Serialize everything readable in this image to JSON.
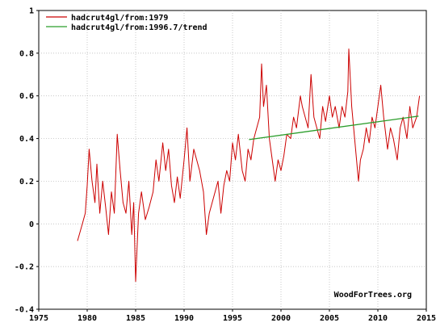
{
  "chart_data": {
    "type": "line",
    "title": "",
    "xlabel": "",
    "ylabel": "",
    "xlim": [
      1975,
      2015
    ],
    "ylim": [
      -0.4,
      1.0
    ],
    "x_ticks": [
      1975,
      1980,
      1985,
      1990,
      1995,
      2000,
      2005,
      2010,
      2015
    ],
    "y_ticks": [
      -0.4,
      -0.2,
      0,
      0.2,
      0.4,
      0.6,
      0.8,
      1
    ],
    "y_tick_labels": [
      "-0.4",
      "-0.2",
      "0",
      "0.2",
      "0.4",
      "0.6",
      "0.8",
      "1"
    ],
    "grid": true,
    "legend_position": "top-left",
    "credit": "WoodForTrees.org",
    "series": [
      {
        "name": "hadcrut4gl/from:1979",
        "color": "#cc0000",
        "x": [
          1979.0,
          1979.5,
          1979.8,
          1980.0,
          1980.2,
          1980.5,
          1980.8,
          1981.0,
          1981.3,
          1981.6,
          1981.9,
          1982.2,
          1982.5,
          1982.8,
          1983.1,
          1983.4,
          1983.7,
          1984.0,
          1984.3,
          1984.6,
          1984.8,
          1985.0,
          1985.3,
          1985.6,
          1986.0,
          1986.4,
          1986.8,
          1987.1,
          1987.4,
          1987.8,
          1988.1,
          1988.4,
          1988.7,
          1989.0,
          1989.3,
          1989.6,
          1990.0,
          1990.3,
          1990.6,
          1991.0,
          1991.3,
          1991.6,
          1992.0,
          1992.3,
          1992.6,
          1992.9,
          1993.2,
          1993.5,
          1993.8,
          1994.1,
          1994.4,
          1994.7,
          1995.0,
          1995.3,
          1995.6,
          1996.0,
          1996.3,
          1996.6,
          1996.9,
          1997.2,
          1997.5,
          1997.8,
          1998.0,
          1998.2,
          1998.5,
          1998.8,
          1999.1,
          1999.4,
          1999.7,
          2000.0,
          2000.3,
          2000.6,
          2001.0,
          2001.3,
          2001.6,
          2002.0,
          2002.2,
          2002.5,
          2002.8,
          2003.1,
          2003.4,
          2003.7,
          2004.0,
          2004.3,
          2004.6,
          2005.0,
          2005.3,
          2005.6,
          2006.0,
          2006.3,
          2006.6,
          2006.9,
          2007.0,
          2007.3,
          2007.6,
          2008.0,
          2008.2,
          2008.5,
          2008.8,
          2009.1,
          2009.4,
          2009.7,
          2010.0,
          2010.3,
          2010.6,
          2011.0,
          2011.3,
          2011.6,
          2012.0,
          2012.3,
          2012.6,
          2013.0,
          2013.3,
          2013.6,
          2014.0,
          2014.3
        ],
        "y": [
          -0.08,
          0.0,
          0.05,
          0.18,
          0.35,
          0.2,
          0.1,
          0.28,
          0.05,
          0.2,
          0.08,
          -0.05,
          0.15,
          0.05,
          0.42,
          0.25,
          0.1,
          0.05,
          0.2,
          -0.05,
          0.1,
          -0.27,
          0.05,
          0.15,
          0.02,
          0.08,
          0.15,
          0.3,
          0.2,
          0.38,
          0.25,
          0.35,
          0.18,
          0.1,
          0.22,
          0.12,
          0.3,
          0.45,
          0.2,
          0.35,
          0.3,
          0.25,
          0.15,
          -0.05,
          0.05,
          0.1,
          0.15,
          0.2,
          0.05,
          0.18,
          0.25,
          0.2,
          0.38,
          0.3,
          0.42,
          0.25,
          0.2,
          0.35,
          0.3,
          0.4,
          0.45,
          0.5,
          0.75,
          0.55,
          0.65,
          0.4,
          0.3,
          0.2,
          0.3,
          0.25,
          0.32,
          0.42,
          0.4,
          0.5,
          0.45,
          0.6,
          0.55,
          0.5,
          0.45,
          0.7,
          0.5,
          0.45,
          0.4,
          0.55,
          0.48,
          0.6,
          0.5,
          0.55,
          0.45,
          0.55,
          0.5,
          0.62,
          0.82,
          0.55,
          0.4,
          0.2,
          0.3,
          0.35,
          0.45,
          0.38,
          0.5,
          0.45,
          0.55,
          0.65,
          0.5,
          0.35,
          0.45,
          0.4,
          0.3,
          0.45,
          0.5,
          0.4,
          0.55,
          0.45,
          0.5,
          0.6
        ]
      },
      {
        "name": "hadcrut4gl/from:1996.7/trend",
        "color": "#2a9d2a",
        "x": [
          1996.7,
          2014.2
        ],
        "y": [
          0.395,
          0.505
        ]
      }
    ]
  }
}
